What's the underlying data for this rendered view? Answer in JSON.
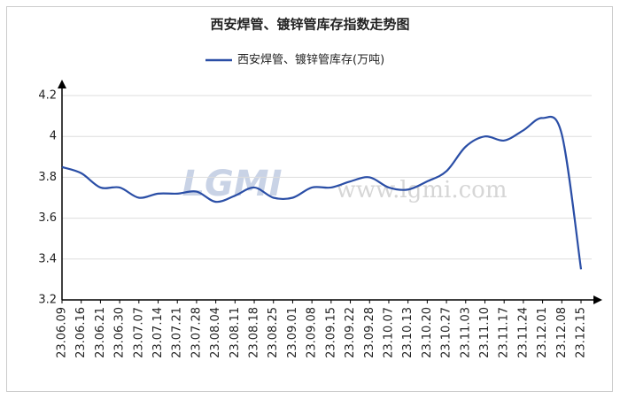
{
  "chart_data": {
    "type": "line",
    "title": "西安焊管、镀锌管库存指数走势图",
    "watermark": [
      "LGMI",
      "www.lgmi.com"
    ],
    "categories": [
      "23.06.09",
      "23.06.16",
      "23.06.21",
      "23.06.30",
      "23.07.07",
      "23.07.14",
      "23.07.21",
      "23.07.28",
      "23.08.04",
      "23.08.11",
      "23.08.18",
      "23.08.25",
      "23.09.01",
      "23.09.08",
      "23.09.15",
      "23.09.22",
      "23.09.28",
      "23.10.07",
      "23.10.13",
      "23.10.20",
      "23.10.27",
      "23.11.03",
      "23.11.10",
      "23.11.17",
      "23.11.24",
      "23.12.01",
      "23.12.08",
      "23.12.15"
    ],
    "series": [
      {
        "name": "西安焊管、镀锌管库存(万吨)",
        "color": "#2a4ea6",
        "values": [
          3.85,
          3.82,
          3.75,
          3.75,
          3.7,
          3.72,
          3.72,
          3.73,
          3.68,
          3.71,
          3.75,
          3.7,
          3.7,
          3.75,
          3.75,
          3.78,
          3.8,
          3.75,
          3.74,
          3.78,
          3.83,
          3.95,
          4.0,
          3.98,
          4.03,
          4.09,
          4.01,
          3.35
        ]
      }
    ],
    "ylim": [
      3.2,
      4.2
    ],
    "yticks": [
      3.2,
      3.4,
      3.6,
      3.8,
      4,
      4.2
    ],
    "grid": true
  }
}
